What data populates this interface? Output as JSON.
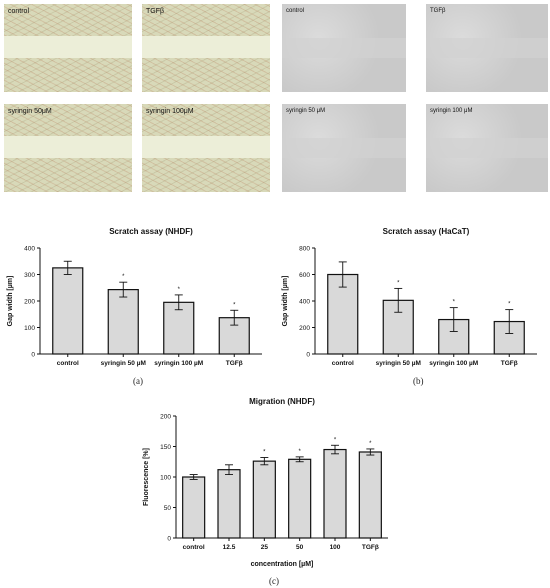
{
  "micrographs": {
    "nhdf": [
      "control",
      "TGFβ",
      "syringin 50μM",
      "syringin 100μM"
    ],
    "hacat": [
      "control",
      "TGFβ",
      "syringin 50 μM",
      "syringin 100 μM"
    ]
  },
  "chart_data": [
    {
      "type": "bar",
      "title": "Scratch assay (NHDF)",
      "xlabel": "",
      "ylabel": "Gap width [µm]",
      "categories": [
        "control",
        "syringin 50 µM",
        "syringin 100 µM",
        "TGFβ"
      ],
      "values": [
        325,
        243,
        195,
        137
      ],
      "errors": [
        25,
        28,
        28,
        28
      ],
      "significant": [
        false,
        true,
        true,
        true
      ],
      "ylim": [
        0,
        400
      ],
      "yticks": [
        0,
        100,
        200,
        300,
        400
      ],
      "panel": "(a)"
    },
    {
      "type": "bar",
      "title": "Scratch assay (HaCaT)",
      "xlabel": "",
      "ylabel": "Gap width [µm]",
      "categories": [
        "control",
        "syringin 50 µM",
        "syringin 100 µM",
        "TGFβ"
      ],
      "values": [
        600,
        405,
        260,
        245
      ],
      "errors": [
        95,
        90,
        90,
        90
      ],
      "significant": [
        false,
        true,
        true,
        true
      ],
      "ylim": [
        0,
        800
      ],
      "yticks": [
        0,
        200,
        400,
        600,
        800
      ],
      "panel": "(b)"
    },
    {
      "type": "bar",
      "title": "Migration (NHDF)",
      "xlabel": "concentration [µM]",
      "ylabel": "Fluorescence [%]",
      "categories": [
        "control",
        "12.5",
        "25",
        "50",
        "100",
        "TGFβ"
      ],
      "values": [
        100,
        112,
        126,
        129,
        145,
        141
      ],
      "errors": [
        4,
        8,
        6,
        4,
        7,
        5
      ],
      "significant": [
        false,
        false,
        true,
        true,
        true,
        true
      ],
      "ylim": [
        0,
        200
      ],
      "yticks": [
        0,
        50,
        100,
        150,
        200
      ],
      "panel": "(c)"
    }
  ]
}
